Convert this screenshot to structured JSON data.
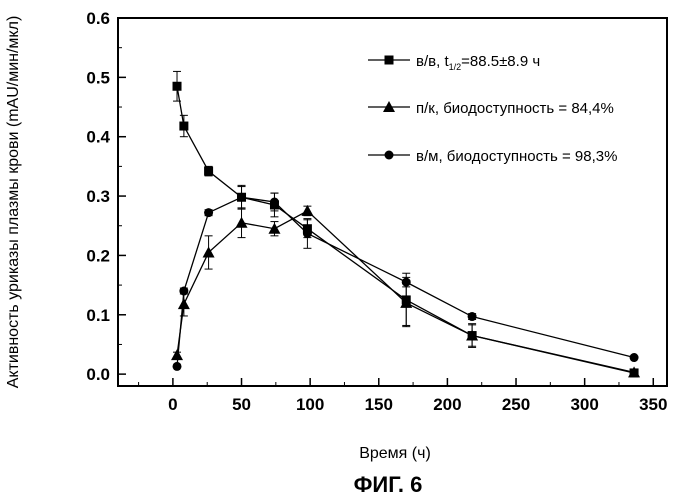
{
  "figure_label": "ФИГ. 6",
  "chart_data": {
    "type": "line",
    "xlabel": "Время (ч)",
    "ylabel": "Активность уриказы плазмы крови (mAU/мин/мкл)",
    "xlim": [
      -40,
      360
    ],
    "ylim": [
      -0.02,
      0.6
    ],
    "x_ticks": [
      0,
      50,
      100,
      150,
      200,
      250,
      300,
      350
    ],
    "y_ticks": [
      0.0,
      0.1,
      0.2,
      0.3,
      0.4,
      0.5,
      0.6
    ],
    "x_tick_labels": [
      "0",
      "50",
      "100",
      "150",
      "200",
      "250",
      "300",
      "350"
    ],
    "y_tick_labels": [
      "0.0",
      "0.1",
      "0.2",
      "0.3",
      "0.4",
      "0.5",
      "0.6"
    ],
    "legend_position": "top-right",
    "series": [
      {
        "name": "в/в, t1/2=88.5±8.9 ч",
        "legend_main": "в/в, t",
        "legend_sub": "1/2",
        "legend_rest": "=88.5±8.9  ч",
        "marker": "square",
        "x": [
          3,
          8,
          26,
          50,
          74,
          98,
          170,
          218,
          336
        ],
        "y": [
          0.485,
          0.418,
          0.342,
          0.298,
          0.285,
          0.245,
          0.125,
          0.065,
          0.002
        ],
        "err": [
          0.025,
          0.018,
          0.008,
          0.018,
          0.02,
          0.015,
          0.045,
          0.018,
          0.005
        ]
      },
      {
        "name": "п/к, биодоступность = 84,4%",
        "legend_main": "п/к, биодоступность = 84,4%",
        "marker": "triangle",
        "x": [
          3,
          8,
          26,
          50,
          74,
          98,
          170,
          218,
          336
        ],
        "y": [
          0.032,
          0.118,
          0.205,
          0.255,
          0.245,
          0.275,
          0.12,
          0.065,
          0.003
        ],
        "err": [
          0.005,
          0.02,
          0.028,
          0.025,
          0.012,
          0.008,
          0.038,
          0.02,
          0.005
        ]
      },
      {
        "name": "в/м, биодоступность = 98,3%",
        "legend_main": "в/м, биодоступность = 98,3%",
        "marker": "circle",
        "x": [
          3,
          8,
          26,
          50,
          74,
          98,
          170,
          218,
          336
        ],
        "y": [
          0.013,
          0.14,
          0.272,
          0.298,
          0.29,
          0.237,
          0.155,
          0.097,
          0.028
        ],
        "err": [
          0.003,
          0.005,
          0.005,
          0.02,
          0.015,
          0.025,
          0.008,
          0.005,
          0.003
        ]
      }
    ]
  }
}
